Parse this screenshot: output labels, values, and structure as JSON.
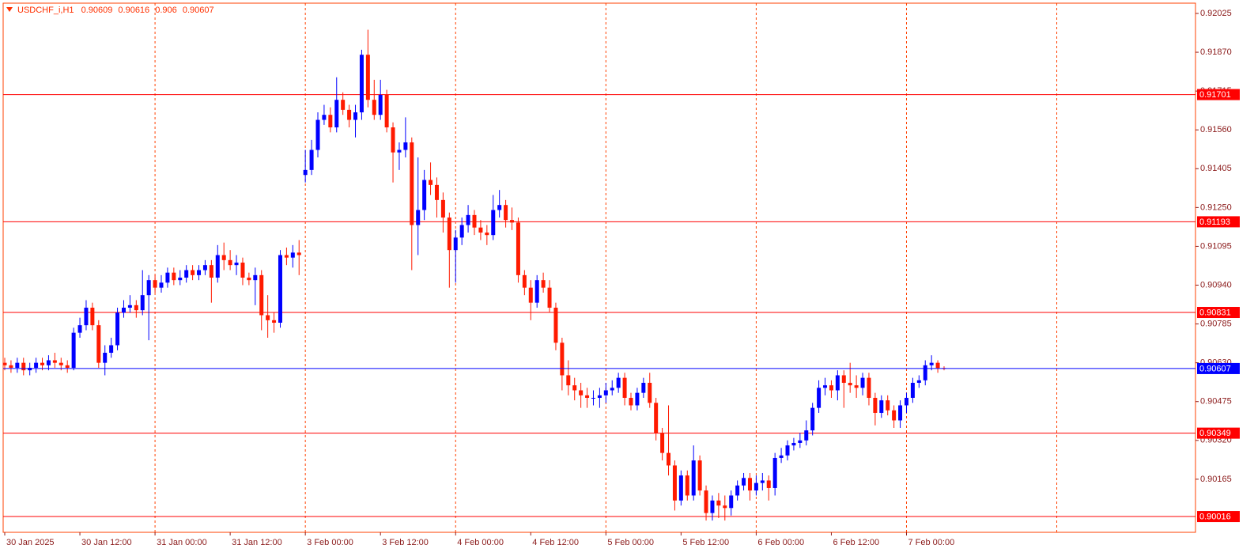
{
  "chart_data": {
    "type": "candlestick",
    "title": "USDCHF_i,H1",
    "categories": [
      "30 Jan 2025",
      null,
      null,
      null,
      null,
      null,
      null,
      null,
      null,
      null,
      null,
      null,
      "30 Jan 12:00",
      null,
      null,
      null,
      null,
      null,
      null,
      null,
      null,
      null,
      null,
      null,
      "31 Jan 00:00",
      null,
      null,
      null,
      null,
      null,
      null,
      null,
      null,
      null,
      null,
      null,
      "31 Jan 12:00",
      null,
      null,
      null,
      null,
      null,
      null,
      null,
      null,
      null,
      null,
      null,
      "3 Feb 00:00",
      null,
      null,
      null,
      null,
      null,
      null,
      null,
      null,
      null,
      null,
      null,
      "3 Feb 12:00",
      null,
      null,
      null,
      null,
      null,
      null,
      null,
      null,
      null,
      null,
      null,
      "4 Feb 00:00",
      null,
      null,
      null,
      null,
      null,
      null,
      null,
      null,
      null,
      null,
      null,
      "4 Feb 12:00",
      null,
      null,
      null,
      null,
      null,
      null,
      null,
      null,
      null,
      null,
      null,
      "5 Feb 00:00",
      null,
      null,
      null,
      null,
      null,
      null,
      null,
      null,
      null,
      null,
      null,
      "5 Feb 12:00",
      null,
      null,
      null,
      null,
      null,
      null,
      null,
      null,
      null,
      null,
      null,
      "6 Feb 00:00",
      null,
      null,
      null,
      null,
      null,
      null,
      null,
      null,
      null,
      null,
      null,
      "6 Feb 12:00",
      null,
      null,
      null,
      null,
      null,
      null,
      null,
      null,
      null,
      null,
      null,
      "7 Feb 00:00",
      null,
      null,
      null,
      null,
      null,
      null
    ],
    "open": [
      0.9063,
      0.9062,
      0.9061,
      0.9063,
      0.906,
      0.9061,
      0.9063,
      0.9062,
      0.9064,
      0.9063,
      0.9062,
      0.9061,
      0.9075,
      0.9078,
      0.9085,
      0.9078,
      0.9063,
      0.9067,
      0.907,
      0.9083,
      0.9085,
      0.9086,
      0.9084,
      0.909,
      0.9096,
      0.9093,
      0.9095,
      0.9099,
      0.9096,
      0.9097,
      0.91,
      0.9098,
      0.91,
      0.9102,
      0.9097,
      0.9106,
      0.9104,
      0.9102,
      0.9103,
      0.9097,
      0.9096,
      0.9098,
      0.9082,
      0.908,
      0.9079,
      0.9106,
      0.9105,
      0.9107,
      0.9138,
      0.914,
      0.9148,
      0.916,
      0.9162,
      0.9157,
      0.9168,
      0.9164,
      0.916,
      0.9163,
      0.9186,
      0.9168,
      0.9162,
      0.917,
      0.9157,
      0.9147,
      0.9148,
      0.9151,
      0.9118,
      0.9124,
      0.9136,
      0.9134,
      0.9128,
      0.9121,
      0.9108,
      0.9113,
      0.9118,
      0.9122,
      0.9117,
      0.9115,
      0.9114,
      0.9124,
      0.9126,
      0.912,
      0.9119,
      0.9098,
      0.9093,
      0.9087,
      0.9096,
      0.9093,
      0.9085,
      0.9071,
      0.9058,
      0.9054,
      0.9052,
      0.905,
      0.9049,
      0.9049,
      0.905,
      0.9052,
      0.9053,
      0.9057,
      0.9049,
      0.9046,
      0.9051,
      0.9055,
      0.9047,
      0.9035,
      0.9027,
      0.9022,
      0.9008,
      0.9018,
      0.901,
      0.9024,
      0.9012,
      0.9003,
      0.9008,
      0.9006,
      0.9005,
      0.901,
      0.9014,
      0.9017,
      0.9012,
      0.9015,
      0.9016,
      0.9013,
      0.9025,
      0.9026,
      0.903,
      0.9031,
      0.9032,
      0.9036,
      0.9045,
      0.9053,
      0.9054,
      0.9052,
      0.9058,
      0.9055,
      0.9054,
      0.9053,
      0.9057,
      0.9049,
      0.9043,
      0.9048,
      0.9044,
      0.904,
      0.9046,
      0.9049,
      0.9055,
      0.9056,
      0.9062,
      0.9063,
      0.90609
    ],
    "high": [
      0.9065,
      0.9064,
      0.9065,
      0.9065,
      0.9063,
      0.9065,
      0.9065,
      0.9066,
      0.9067,
      0.9065,
      0.9064,
      0.9077,
      0.9081,
      0.9088,
      0.9087,
      0.908,
      0.907,
      0.9073,
      0.9085,
      0.9088,
      0.909,
      0.9088,
      0.91,
      0.9098,
      0.9098,
      0.9098,
      0.9101,
      0.9101,
      0.91,
      0.9102,
      0.9102,
      0.9102,
      0.9104,
      0.9104,
      0.911,
      0.9111,
      0.9108,
      0.9106,
      0.9105,
      0.9099,
      0.9101,
      0.91,
      0.909,
      0.9083,
      0.9108,
      0.9109,
      0.911,
      0.9112,
      0.9148,
      0.9152,
      0.9163,
      0.9166,
      0.9165,
      0.9177,
      0.9171,
      0.9166,
      0.9166,
      0.9188,
      0.9196,
      0.9176,
      0.9176,
      0.9172,
      0.9159,
      0.9151,
      0.9161,
      0.9153,
      0.9145,
      0.914,
      0.9143,
      0.9137,
      0.9131,
      0.9123,
      0.9116,
      0.9121,
      0.9126,
      0.9124,
      0.912,
      0.9118,
      0.913,
      0.9132,
      0.9128,
      0.9125,
      0.9121,
      0.91,
      0.9096,
      0.9098,
      0.9099,
      0.9096,
      0.9087,
      0.9073,
      0.9064,
      0.9057,
      0.9055,
      0.9053,
      0.9052,
      0.9053,
      0.9055,
      0.9056,
      0.9059,
      0.9059,
      0.9051,
      0.9053,
      0.9057,
      0.9059,
      0.9049,
      0.9037,
      0.9046,
      0.9024,
      0.902,
      0.902,
      0.903,
      0.9026,
      0.9014,
      0.901,
      0.9011,
      0.901,
      0.9012,
      0.9016,
      0.9019,
      0.9019,
      0.9018,
      0.9019,
      0.9018,
      0.9027,
      0.9029,
      0.9032,
      0.9033,
      0.9035,
      0.904,
      0.9047,
      0.9056,
      0.9057,
      0.9056,
      0.906,
      0.906,
      0.9063,
      0.9058,
      0.9059,
      0.9059,
      0.9051,
      0.905,
      0.905,
      0.9046,
      0.9048,
      0.9051,
      0.9057,
      0.9058,
      0.9064,
      0.9066,
      0.9064,
      0.90616
    ],
    "low": [
      0.906,
      0.9059,
      0.9059,
      0.9058,
      0.9058,
      0.9059,
      0.906,
      0.906,
      0.9061,
      0.906,
      0.9059,
      0.906,
      0.9073,
      0.9076,
      0.9076,
      0.9061,
      0.9058,
      0.9065,
      0.9068,
      0.9081,
      0.9083,
      0.9081,
      0.9082,
      0.9072,
      0.9091,
      0.9091,
      0.9093,
      0.9094,
      0.9094,
      0.9095,
      0.9096,
      0.9096,
      0.9098,
      0.9087,
      0.9095,
      0.91,
      0.91,
      0.9098,
      0.9094,
      0.9094,
      0.9086,
      0.9076,
      0.9073,
      0.9075,
      0.9077,
      0.9102,
      0.9101,
      0.9098,
      0.9135,
      0.9138,
      0.9145,
      0.9158,
      0.9155,
      0.9155,
      0.9162,
      0.9157,
      0.9153,
      0.916,
      0.9165,
      0.916,
      0.916,
      0.9155,
      0.9135,
      0.914,
      0.9145,
      0.91,
      0.9106,
      0.912,
      0.913,
      0.9121,
      0.9115,
      0.9093,
      0.9095,
      0.911,
      0.9115,
      0.9114,
      0.9112,
      0.911,
      0.9112,
      0.9121,
      0.9117,
      0.9116,
      0.9095,
      0.909,
      0.908,
      0.9085,
      0.9091,
      0.9083,
      0.9068,
      0.9052,
      0.905,
      0.9048,
      0.9045,
      0.9045,
      0.9046,
      0.9045,
      0.9047,
      0.905,
      0.9051,
      0.9046,
      0.9044,
      0.9044,
      0.9049,
      0.9045,
      0.9032,
      0.9024,
      0.9018,
      0.9004,
      0.9006,
      0.9008,
      0.9008,
      0.901,
      0.9,
      0.9,
      0.9001,
      0.9,
      0.9002,
      0.9008,
      0.9012,
      0.9008,
      0.901,
      0.9012,
      0.9008,
      0.901,
      0.9023,
      0.9024,
      0.9028,
      0.9029,
      0.903,
      0.9034,
      0.9043,
      0.905,
      0.9049,
      0.9048,
      0.9045,
      0.9051,
      0.9049,
      0.905,
      0.9046,
      0.9038,
      0.9041,
      0.9042,
      0.9037,
      0.9037,
      0.9043,
      0.9047,
      0.9053,
      0.9054,
      0.906,
      0.9059,
      0.906
    ],
    "close": [
      0.9062,
      0.9061,
      0.9063,
      0.906,
      0.9061,
      0.9063,
      0.9062,
      0.9064,
      0.9063,
      0.9062,
      0.9061,
      0.9075,
      0.9078,
      0.9085,
      0.9078,
      0.9063,
      0.9067,
      0.907,
      0.9083,
      0.9085,
      0.9086,
      0.9084,
      0.909,
      0.9096,
      0.9093,
      0.9095,
      0.9099,
      0.9096,
      0.9097,
      0.91,
      0.9098,
      0.91,
      0.9102,
      0.9097,
      0.9106,
      0.9104,
      0.9102,
      0.9103,
      0.9097,
      0.9096,
      0.9098,
      0.9082,
      0.908,
      0.9079,
      0.9106,
      0.9105,
      0.9107,
      0.9106,
      0.914,
      0.9148,
      0.916,
      0.9162,
      0.9157,
      0.9168,
      0.9164,
      0.916,
      0.9163,
      0.9186,
      0.9168,
      0.9162,
      0.917,
      0.9157,
      0.9147,
      0.9148,
      0.9151,
      0.9118,
      0.9124,
      0.9136,
      0.9134,
      0.9128,
      0.9121,
      0.9108,
      0.9113,
      0.9118,
      0.9122,
      0.9117,
      0.9115,
      0.9114,
      0.9124,
      0.9126,
      0.912,
      0.9119,
      0.9098,
      0.9093,
      0.9087,
      0.9096,
      0.9093,
      0.9085,
      0.9071,
      0.9058,
      0.9054,
      0.9052,
      0.905,
      0.9049,
      0.9049,
      0.905,
      0.9052,
      0.9053,
      0.9057,
      0.9049,
      0.9046,
      0.9051,
      0.9055,
      0.9047,
      0.9035,
      0.9027,
      0.9022,
      0.9008,
      0.9018,
      0.901,
      0.9024,
      0.9012,
      0.9003,
      0.9008,
      0.9006,
      0.9005,
      0.901,
      0.9014,
      0.9017,
      0.9012,
      0.9015,
      0.9016,
      0.9013,
      0.9025,
      0.9026,
      0.903,
      0.9031,
      0.9032,
      0.9036,
      0.9045,
      0.9053,
      0.9054,
      0.9052,
      0.9058,
      0.9055,
      0.9054,
      0.9053,
      0.9057,
      0.9049,
      0.9043,
      0.9048,
      0.9044,
      0.904,
      0.9046,
      0.9049,
      0.9055,
      0.9056,
      0.9062,
      0.9063,
      0.90609,
      0.90607
    ],
    "up_color": "#0000ff",
    "down_color": "#ff1a00",
    "ylim": [
      0.89953,
      0.92066
    ],
    "yticks": [
      0.92025,
      {
        "value": 0.9187,
        "label": "0.91870"
      },
      0.91715,
      {
        "value": 0.9156,
        "label": "0.91560"
      },
      0.91405,
      {
        "value": 0.9125,
        "label": "0.91250"
      },
      0.91095,
      {
        "value": 0.9094,
        "label": "0.90940"
      },
      0.90785,
      {
        "value": 0.9063,
        "label": "0.90630"
      },
      0.90475,
      {
        "value": 0.9032,
        "label": "0.90320"
      },
      0.90165
    ],
    "levels": [
      0.91701,
      0.91193,
      0.90831,
      0.90349,
      0.90016
    ],
    "level_color": "#ff0000",
    "price_line_color": "#0000ff",
    "grid": true,
    "grid_color": "#ff4000"
  }
}
